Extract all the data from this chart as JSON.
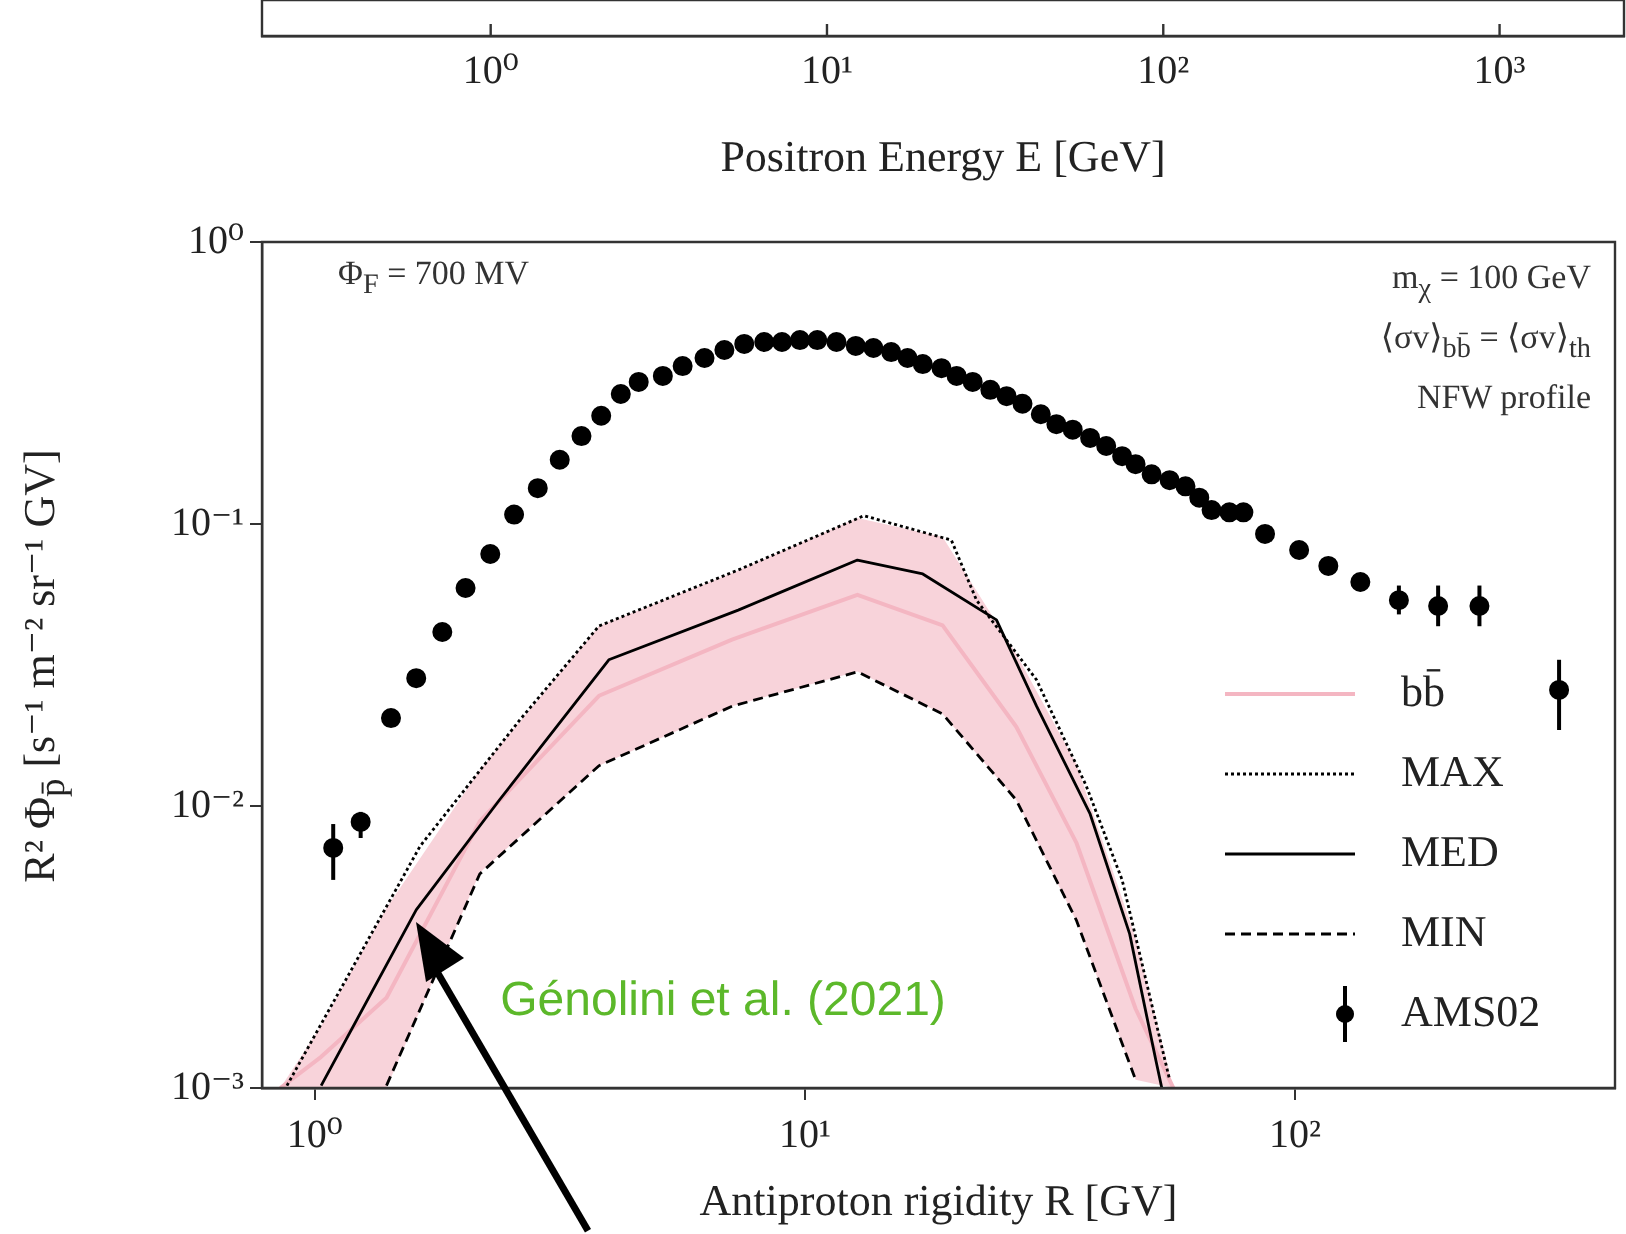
{
  "chart_data": [
    {
      "type": "other",
      "xlabel": "Positron Energy E [GeV]",
      "annotations": [
        "10⁰",
        "10¹",
        "10²",
        "10³"
      ]
    },
    {
      "type": "line",
      "xlabel": "Antiproton rigidity R [GV]",
      "ylabel": "R² Φ$_{p̄}$ [s⁻¹ m⁻² sr⁻¹ GV]",
      "log": "xy",
      "legend": "bottom right",
      "xlim": [
        0.78,
        450
      ],
      "ylim": [
        0.001,
        1
      ],
      "xticks": [
        {
          "value": 1,
          "label": "10⁰"
        },
        {
          "value": 10,
          "label": "10¹"
        },
        {
          "value": 100,
          "label": "10²"
        }
      ],
      "yticks": [
        {
          "value": 0.001,
          "label": "10⁻³"
        },
        {
          "value": 0.01,
          "label": "10⁻²"
        },
        {
          "value": 0.1,
          "label": "10⁻¹"
        },
        {
          "value": 1,
          "label": "10⁰"
        }
      ],
      "annotations": [
        "Φ$_{F}$ = 700 MV",
        "m$_{χ}$ = 100 GeV",
        "⟨σv⟩$_{bb̄}$ = ⟨σv⟩$_{th}$",
        "NFW profile",
        {
          "text": "Génolini et al. (2021)",
          "x": 1.61,
          "y": 0.0039
        }
      ],
      "series": [
        {
          "name": "bb̄",
          "type": "line",
          "color": "#f4b6c2",
          "line_style": "solid",
          "x": [
            0.85,
            1.03,
            1.4,
            2.17,
            3.8,
            7.1,
            12.8,
            19.1,
            27,
            35.8,
            47.3,
            56.5
          ],
          "values": [
            0.001,
            0.00129,
            0.00209,
            0.00882,
            0.0246,
            0.0389,
            0.0561,
            0.0437,
            0.0191,
            0.00742,
            0.00191,
            0.001
          ],
          "upper": [
            0.001,
            0.00166,
            0.00435,
            0.0134,
            0.0435,
            0.067,
            0.105,
            0.09,
            0.0346,
            0.0141,
            0.0034,
            0.001
          ],
          "lower": [
            0.001,
            0.001,
            0.001,
            0.0058,
            0.0139,
            0.0226,
            0.03,
            0.0212,
            0.0105,
            0.0039,
            0.00107,
            0.001
          ]
        },
        {
          "name": "MAX",
          "type": "line",
          "color": "#000000",
          "line_style": "dotted",
          "x": [
            0.877,
            1.64,
            2.62,
            3.8,
            7.31,
            13.2,
            19.9,
            22.4,
            29.7,
            37.5,
            44.4,
            55.5
          ],
          "values": [
            0.00102,
            0.00721,
            0.0202,
            0.0435,
            0.0687,
            0.107,
            0.0877,
            0.0537,
            0.028,
            0.0118,
            0.00547,
            0.00107
          ]
        },
        {
          "name": "MED",
          "type": "line",
          "color": "#000000",
          "line_style": "solid",
          "x": [
            1.03,
            1.61,
            2.38,
            3.98,
            7.31,
            12.8,
            17.4,
            24.6,
            29.7,
            38.2,
            46,
            52,
            53.5
          ],
          "values": [
            0.00102,
            0.00428,
            0.0105,
            0.033,
            0.0495,
            0.0745,
            0.0665,
            0.0457,
            0.0226,
            0.00937,
            0.00352,
            0.00126,
            0.001
          ]
        },
        {
          "name": "MIN",
          "type": "line",
          "color": "#000000",
          "line_style": "dashed",
          "x": [
            1.4,
            2.17,
            3.8,
            7.11,
            12.8,
            19.1,
            27,
            35.8,
            47.3
          ],
          "values": [
            0.00102,
            0.00574,
            0.0139,
            0.0226,
            0.0299,
            0.0212,
            0.0105,
            0.00394,
            0.00107
          ]
        },
        {
          "name": "AMS02",
          "type": "scatter",
          "color": "#000000",
          "marker": "circle",
          "x": [
            1.09,
            1.24,
            1.43,
            1.61,
            1.82,
            2.03,
            2.28,
            2.55,
            2.85,
            3.16,
            3.5,
            3.84,
            4.21,
            4.58,
            5.13,
            5.63,
            6.24,
            6.85,
            7.52,
            8.26,
            8.98,
            9.77,
            10.6,
            11.6,
            12.7,
            13.8,
            15,
            16.2,
            17.4,
            19,
            20.4,
            22,
            23.9,
            25.8,
            27.8,
            30.3,
            32.6,
            35.2,
            38.2,
            41.2,
            44.4,
            47.3,
            51,
            55.5,
            59.8,
            63.8,
            67.6,
            73.5,
            78.5,
            86.9,
            102,
            117,
            136,
            163,
            196,
            238,
            346
          ],
          "values": [
            0.0071,
            0.00878,
            0.0205,
            0.0284,
            0.0414,
            0.0593,
            0.0783,
            0.108,
            0.134,
            0.169,
            0.205,
            0.242,
            0.289,
            0.319,
            0.335,
            0.363,
            0.388,
            0.414,
            0.435,
            0.442,
            0.442,
            0.449,
            0.449,
            0.442,
            0.428,
            0.421,
            0.407,
            0.388,
            0.369,
            0.357,
            0.335,
            0.319,
            0.299,
            0.284,
            0.267,
            0.245,
            0.226,
            0.216,
            0.202,
            0.189,
            0.174,
            0.163,
            0.15,
            0.143,
            0.136,
            0.124,
            0.112,
            0.11,
            0.11,
            0.0922,
            0.0809,
            0.071,
            0.0623,
            0.0537,
            0.0512,
            0.0512,
            0.0258
          ],
          "errors": [
            [
              0.00547,
              0.00863
            ],
            [
              0.0077,
              0.00953
            ],
            null,
            null,
            null,
            null,
            null,
            null,
            null,
            null,
            null,
            null,
            null,
            null,
            null,
            null,
            null,
            null,
            null,
            null,
            null,
            null,
            null,
            null,
            null,
            null,
            null,
            null,
            null,
            null,
            null,
            null,
            null,
            null,
            null,
            null,
            null,
            null,
            null,
            null,
            null,
            null,
            null,
            null,
            null,
            null,
            null,
            null,
            null,
            null,
            null,
            null,
            null,
            [
              0.0478,
              0.0605
            ],
            [
              0.0434,
              0.0605
            ],
            [
              0.0434,
              0.0605
            ],
            [
              0.0186,
              0.033
            ]
          ]
        }
      ]
    }
  ]
}
